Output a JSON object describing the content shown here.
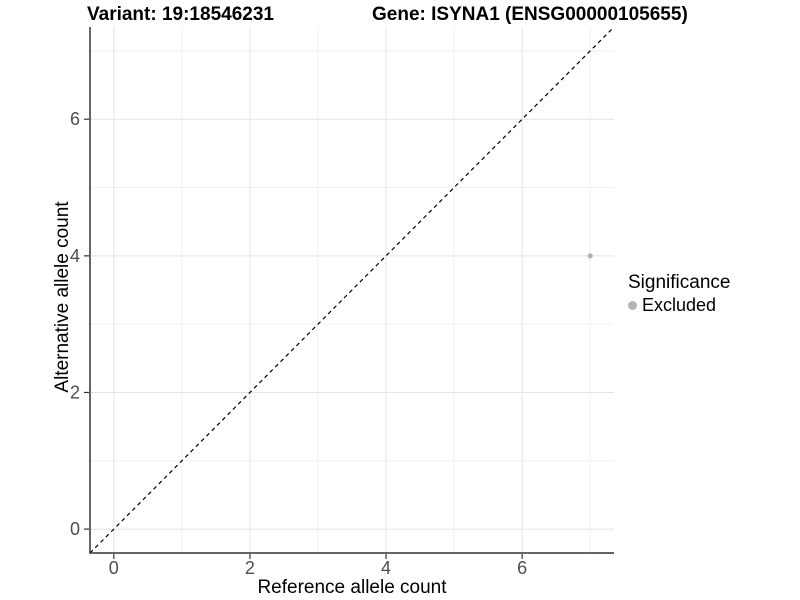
{
  "chart_data": {
    "type": "scatter",
    "titles": {
      "left": "Variant: 19:18546231",
      "right": "Gene: ISYNA1 (ENSG00000105655)"
    },
    "xlabel": "Reference allele count",
    "ylabel": "Alternative allele count",
    "xlim": [
      -0.35,
      7.35
    ],
    "ylim": [
      -0.35,
      7.35
    ],
    "x_ticks": [
      0,
      2,
      4,
      6
    ],
    "y_ticks": [
      0,
      2,
      4,
      6
    ],
    "x_minor_ticks": [
      1,
      3,
      5,
      7
    ],
    "y_minor_ticks": [
      1,
      3,
      5,
      7
    ],
    "grid": "major+minor",
    "legend_position": "right",
    "reference_line": {
      "kind": "identity",
      "equation": "y = x",
      "style": "dashed",
      "color": "#000000"
    },
    "series": [
      {
        "name": "Excluded",
        "marker": "circle",
        "color": "#b4b4b4",
        "points": [
          {
            "x": 7,
            "y": 4
          }
        ]
      }
    ],
    "legend": {
      "title": "Significance",
      "items": [
        {
          "label": "Excluded",
          "color": "#b4b4b4"
        }
      ]
    }
  },
  "style": {
    "background": "#ffffff",
    "grid_major_color": "#e4e4e4",
    "grid_minor_color": "#f1f1f1",
    "axis_color": "#333333",
    "tick_color": "#333333",
    "tick_label_color": "#4d4d4d",
    "text_color": "#000000"
  }
}
